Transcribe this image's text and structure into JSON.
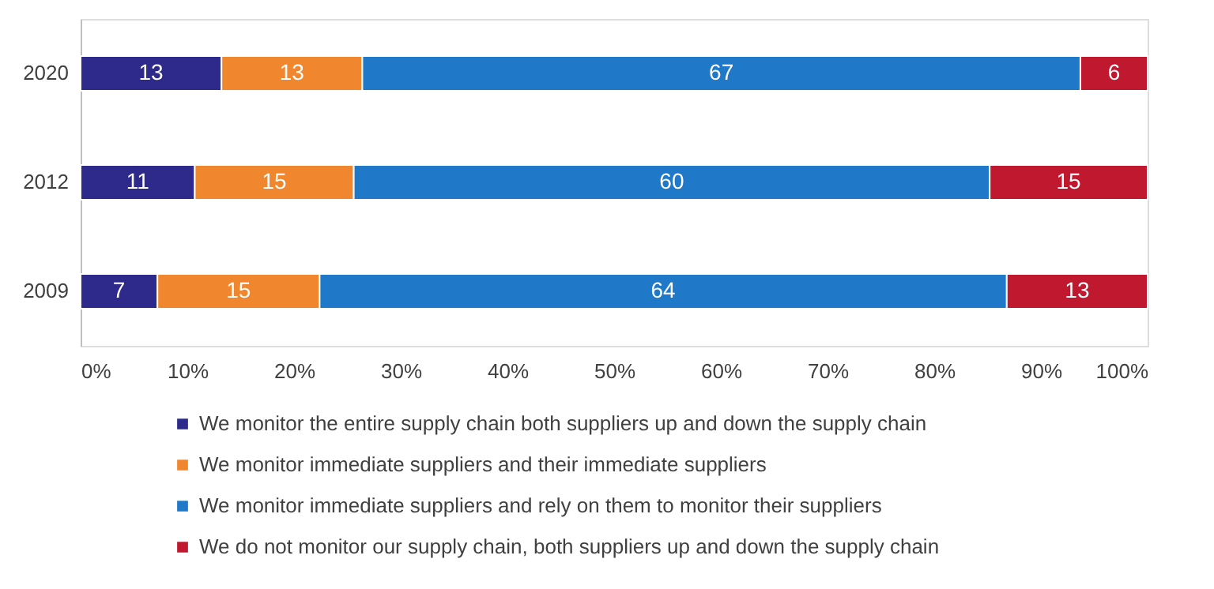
{
  "chart_data": {
    "type": "bar",
    "orientation": "horizontal",
    "stacked": true,
    "categories": [
      "2020",
      "2012",
      "2009"
    ],
    "series": [
      {
        "name": "We monitor the entire supply chain both suppliers up and down the supply chain",
        "color": "#2e2a8c",
        "values": [
          13.2,
          10.7,
          7.2
        ],
        "value_labels": [
          "13",
          "11",
          "7"
        ]
      },
      {
        "name": "We monitor immediate suppliers and their immediate suppliers",
        "color": "#f0862e",
        "values": [
          13.2,
          14.9,
          15.2
        ],
        "value_labels": [
          "13",
          "15",
          "15"
        ]
      },
      {
        "name": "We monitor immediate suppliers and rely on them to monitor their suppliers",
        "color": "#1f78c8",
        "values": [
          67.3,
          59.6,
          64.4
        ],
        "value_labels": [
          "67",
          "60",
          "64"
        ]
      },
      {
        "name": "We do not monitor our supply chain, both suppliers up and down the supply chain",
        "color": "#c0182f",
        "values": [
          6.3,
          14.8,
          13.2
        ],
        "value_labels": [
          "6",
          "15",
          "13"
        ]
      }
    ],
    "xlim": [
      0,
      100
    ],
    "xticks": [
      {
        "value": 0,
        "label": "0%"
      },
      {
        "value": 10,
        "label": "10%"
      },
      {
        "value": 20,
        "label": "20%"
      },
      {
        "value": 30,
        "label": "30%"
      },
      {
        "value": 40,
        "label": "40%"
      },
      {
        "value": 50,
        "label": "50%"
      },
      {
        "value": 60,
        "label": "60%"
      },
      {
        "value": 70,
        "label": "70%"
      },
      {
        "value": 80,
        "label": "80%"
      },
      {
        "value": 90,
        "label": "90%"
      },
      {
        "value": 100,
        "label": "100%"
      }
    ],
    "legend": "bottom",
    "grid": false
  }
}
